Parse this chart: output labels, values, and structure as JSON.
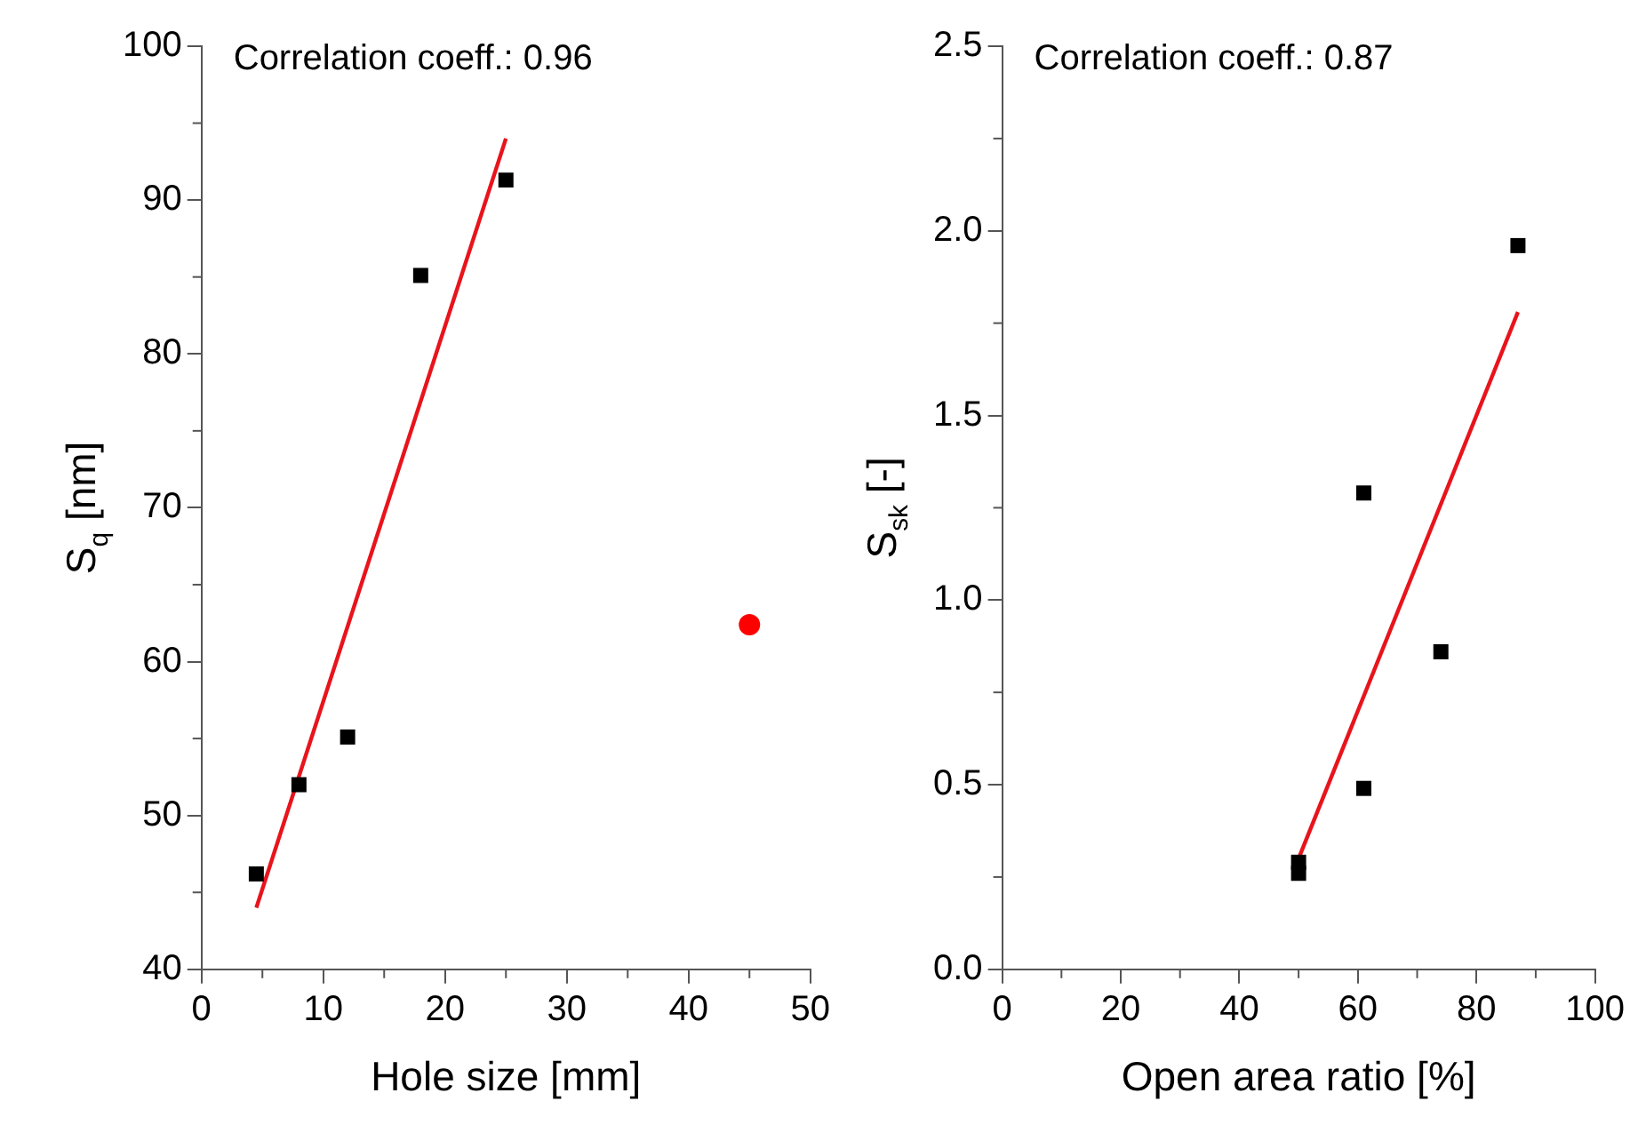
{
  "chart_data": [
    {
      "type": "scatter",
      "xlabel": "Hole size [mm]",
      "ylabel": "S$_{q}$ [nm]",
      "annotations": [
        "Correlation coeff.: 0.96"
      ],
      "xlim": [
        0,
        50
      ],
      "xticks": [
        0,
        10,
        20,
        30,
        40,
        50
      ],
      "ylim": [
        40,
        100
      ],
      "yticks": [
        40,
        50,
        60,
        70,
        80,
        90,
        100
      ],
      "grid": false,
      "legend": false,
      "series": [
        {
          "type": "scatter",
          "marker": "square",
          "color": "#000000",
          "x": [
            4.5,
            8,
            12,
            18,
            25
          ],
          "values": [
            46.2,
            52,
            55.1,
            85.1,
            91.3
          ]
        },
        {
          "type": "line",
          "marker": "none",
          "color": "#e8141c",
          "x": [
            4.5,
            25
          ],
          "values": [
            44,
            94
          ]
        },
        {
          "type": "scatter",
          "marker": "circle",
          "color": "#ff0000",
          "x": [
            45
          ],
          "values": [
            62.4
          ]
        }
      ]
    },
    {
      "type": "scatter",
      "xlabel": "Open area ratio [%]",
      "ylabel": "S$_{sk}$ [-]",
      "annotations": [
        "Correlation coeff.: 0.87"
      ],
      "xlim": [
        0,
        100
      ],
      "xticks": [
        0,
        20,
        40,
        60,
        80,
        100
      ],
      "ylim": [
        0,
        2.5
      ],
      "yticks": [
        {
          "value": 0,
          "label": "0.0"
        },
        {
          "value": 0.5,
          "label": "0.5"
        },
        {
          "value": 1,
          "label": "1.0"
        },
        {
          "value": 1.5,
          "label": "1.5"
        },
        {
          "value": 2,
          "label": "2.0"
        },
        {
          "value": 2.5,
          "label": "2.5"
        }
      ],
      "grid": false,
      "legend": false,
      "series": [
        {
          "type": "scatter",
          "marker": "square",
          "color": "#000000",
          "x": [
            50,
            50,
            61,
            61,
            74,
            87
          ],
          "values": [
            0.26,
            0.29,
            0.49,
            1.29,
            0.86,
            1.96
          ]
        },
        {
          "type": "line",
          "marker": "none",
          "color": "#e8141c",
          "x": [
            50,
            87
          ],
          "values": [
            0.3,
            1.78
          ]
        }
      ]
    }
  ]
}
